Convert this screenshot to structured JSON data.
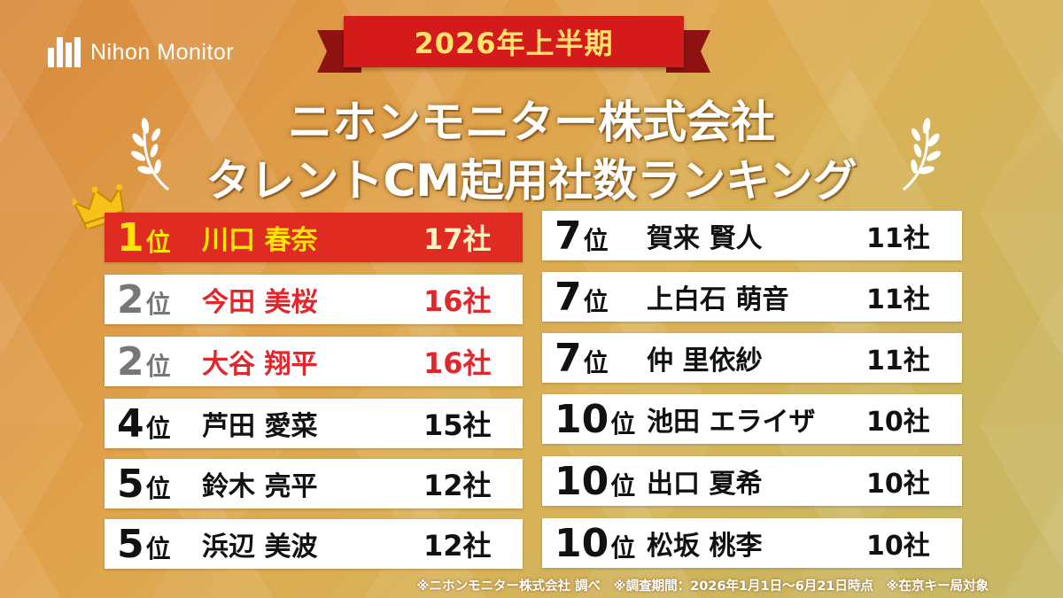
{
  "brand": {
    "logo_text": "Nihon Monitor"
  },
  "ribbon": {
    "text": "2026年上半期"
  },
  "title": {
    "line1": "ニホンモニター株式会社",
    "line2": "タレントCM起用社数ランキング"
  },
  "left_rankings": [
    {
      "rank": "1",
      "suffix": "位",
      "name": "川口 春奈",
      "count": "17社"
    },
    {
      "rank": "2",
      "suffix": "位",
      "name": "今田 美桜",
      "count": "16社"
    },
    {
      "rank": "2",
      "suffix": "位",
      "name": "大谷 翔平",
      "count": "16社"
    },
    {
      "rank": "4",
      "suffix": "位",
      "name": "芦田 愛菜",
      "count": "15社"
    },
    {
      "rank": "5",
      "suffix": "位",
      "name": "鈴木 亮平",
      "count": "12社"
    },
    {
      "rank": "5",
      "suffix": "位",
      "name": "浜辺 美波",
      "count": "12社"
    }
  ],
  "right_rankings": [
    {
      "rank": "7",
      "suffix": "位",
      "name": "賀来 賢人",
      "count": "11社"
    },
    {
      "rank": "7",
      "suffix": "位",
      "name": "上白石 萌音",
      "count": "11社"
    },
    {
      "rank": "7",
      "suffix": "位",
      "name": "仲 里依紗",
      "count": "11社"
    },
    {
      "rank": "10",
      "suffix": "位",
      "name": "池田 エライザ",
      "count": "10社"
    },
    {
      "rank": "10",
      "suffix": "位",
      "name": "出口 夏希",
      "count": "10社"
    },
    {
      "rank": "10",
      "suffix": "位",
      "name": "松坂 桃李",
      "count": "10社"
    }
  ],
  "footer": {
    "text": "※ニホンモニター株式会社 調べ　※調査期間：2026年1月1日〜6月21日時点　※在京キー局対象"
  },
  "colors": {
    "first_bg": "#e02b22",
    "first_text": "#ffe600",
    "highlight_red": "#e3262c",
    "ribbon": "#d41a1a",
    "ribbon_text": "#ffe36a"
  }
}
